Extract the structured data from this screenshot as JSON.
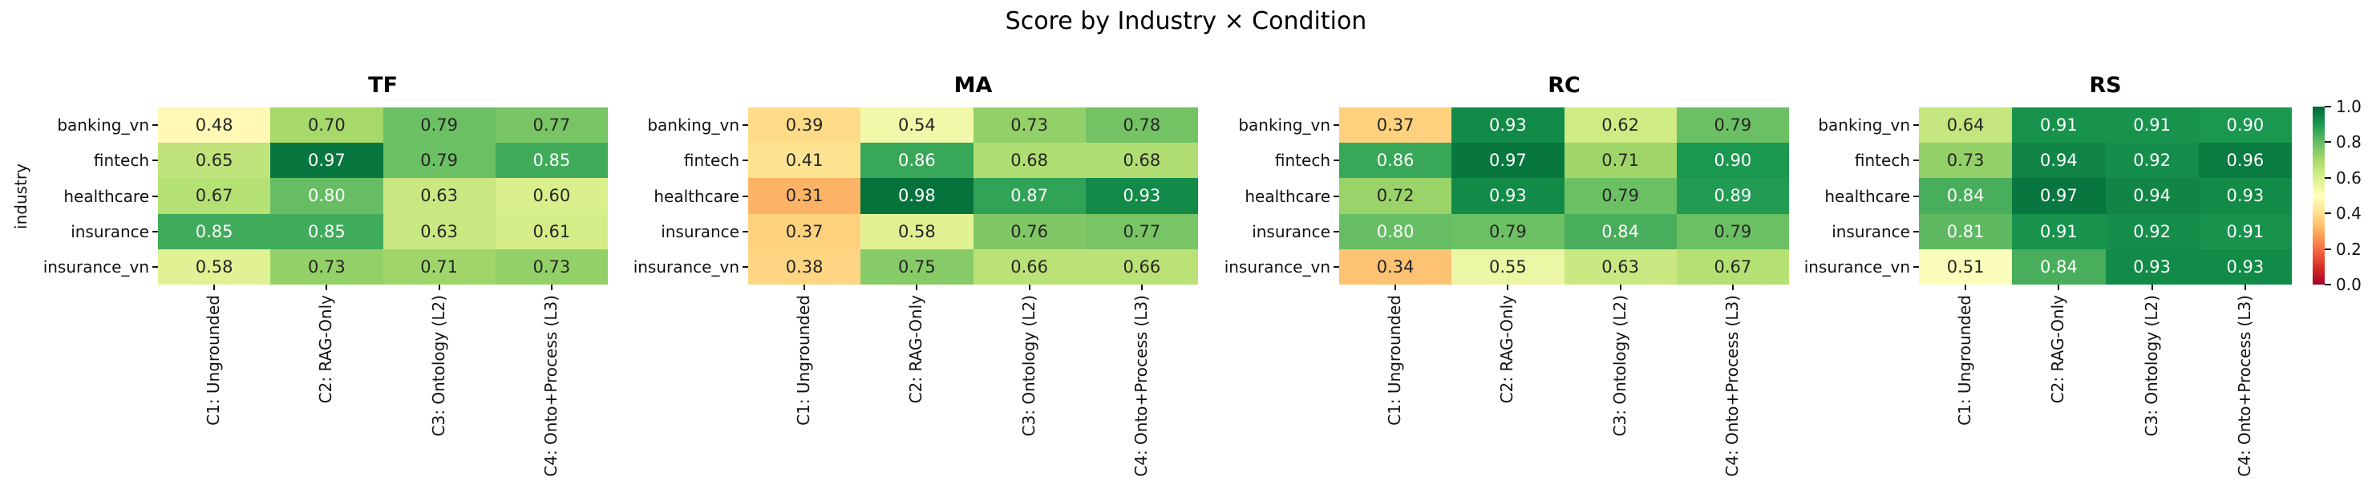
{
  "title": "Score by Industry × Condition",
  "ylabel": "industry",
  "chart_data": {
    "type": "heatmap",
    "rows": [
      "banking_vn",
      "fintech",
      "healthcare",
      "insurance",
      "insurance_vn"
    ],
    "columns": [
      "C1: Ungrounded",
      "C2: RAG-Only",
      "C3: Ontology (L2)",
      "C4: Onto+Process (L3)"
    ],
    "value_decimals": 2,
    "panels": [
      {
        "title": "TF",
        "values": [
          [
            0.48,
            0.7,
            0.79,
            0.77
          ],
          [
            0.65,
            0.97,
            0.79,
            0.85
          ],
          [
            0.67,
            0.8,
            0.63,
            0.6
          ],
          [
            0.85,
            0.85,
            0.63,
            0.61
          ],
          [
            0.58,
            0.73,
            0.71,
            0.73
          ]
        ]
      },
      {
        "title": "MA",
        "values": [
          [
            0.39,
            0.54,
            0.73,
            0.78
          ],
          [
            0.41,
            0.86,
            0.68,
            0.68
          ],
          [
            0.31,
            0.98,
            0.87,
            0.93
          ],
          [
            0.37,
            0.58,
            0.76,
            0.77
          ],
          [
            0.38,
            0.75,
            0.66,
            0.66
          ]
        ]
      },
      {
        "title": "RC",
        "values": [
          [
            0.37,
            0.93,
            0.62,
            0.79
          ],
          [
            0.86,
            0.97,
            0.71,
            0.9
          ],
          [
            0.72,
            0.93,
            0.79,
            0.89
          ],
          [
            0.8,
            0.79,
            0.84,
            0.79
          ],
          [
            0.34,
            0.55,
            0.63,
            0.67
          ]
        ]
      },
      {
        "title": "RS",
        "values": [
          [
            0.64,
            0.91,
            0.91,
            0.9
          ],
          [
            0.73,
            0.94,
            0.92,
            0.96
          ],
          [
            0.84,
            0.97,
            0.94,
            0.93
          ],
          [
            0.81,
            0.91,
            0.92,
            0.91
          ],
          [
            0.51,
            0.84,
            0.93,
            0.93
          ]
        ]
      }
    ],
    "colorbar": {
      "colormap": "RdYlGn",
      "vmin": 0.0,
      "vmax": 1.0,
      "tick_labels": [
        "1.0",
        "0.8",
        "0.6",
        "0.4",
        "0.2",
        "0.0"
      ],
      "gradient_stops_low_to_high": [
        "#a50026",
        "#d73027",
        "#f46d43",
        "#fdae61",
        "#fee08b",
        "#ffffbf",
        "#d9ef8b",
        "#a6d96a",
        "#66bd63",
        "#1a9850",
        "#006837"
      ]
    },
    "annotation_text_colors": {
      "on_light": "#262626",
      "on_dark": "#ffffff"
    },
    "legend_position": "right",
    "grid": false
  }
}
